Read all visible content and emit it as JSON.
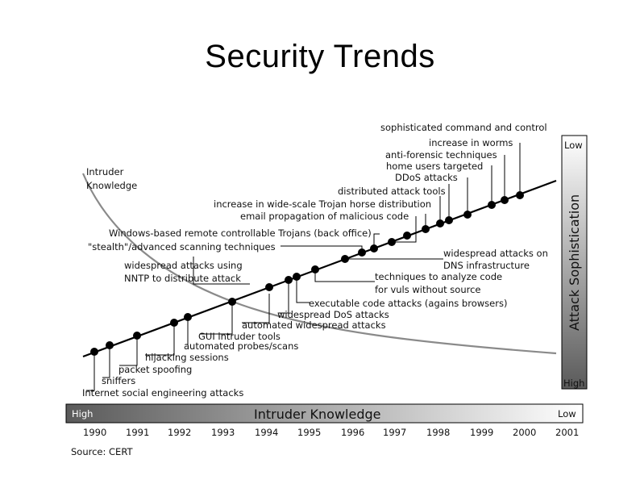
{
  "title": "Security Trends",
  "curve_label": "Intruder\nKnowledge",
  "curve_label_line1": "Intruder",
  "curve_label_line2": "Knowledge",
  "sophistication_bar": {
    "label": "Attack Sophistication",
    "top": "Low",
    "bottom": "High"
  },
  "knowledge_bar": {
    "label": "Intruder Knowledge",
    "left": "High",
    "right": "Low"
  },
  "years": [
    "1990",
    "1991",
    "1992",
    "1993",
    "1994",
    "1995",
    "1996",
    "1997",
    "1998",
    "1999",
    "2000",
    "2001"
  ],
  "source": "Source: CERT",
  "events": [
    {
      "label": "Internet social engineering attacks"
    },
    {
      "label": "sniffers"
    },
    {
      "label": "packet spoofing"
    },
    {
      "label": "hijacking sessions"
    },
    {
      "label": "automated probes/scans"
    },
    {
      "label": "GUI intruder tools"
    },
    {
      "label": "widespread attacks using"
    },
    {
      "label": "NNTP to distribute attack"
    },
    {
      "label": "automated widespread attacks"
    },
    {
      "label": "widespread DoS attacks"
    },
    {
      "label": "executable code attacks (agains browsers)"
    },
    {
      "label": "techniques to analyze code"
    },
    {
      "label": "for vuls without source"
    },
    {
      "label": "widespread attacks on"
    },
    {
      "label": "DNS infrastructure"
    },
    {
      "label": "\"stealth\"/advanced scanning techniques"
    },
    {
      "label": "Windows-based remote controllable Trojans (back office)"
    },
    {
      "label": "email propagation of malicious code"
    },
    {
      "label": "increase in wide-scale Trojan horse distribution"
    },
    {
      "label": "distributed attack tools"
    },
    {
      "label": "DDoS attacks"
    },
    {
      "label": "home users targeted"
    },
    {
      "label": "anti-forensic techniques"
    },
    {
      "label": "increase in worms"
    },
    {
      "label": "sophisticated command and control"
    }
  ]
}
